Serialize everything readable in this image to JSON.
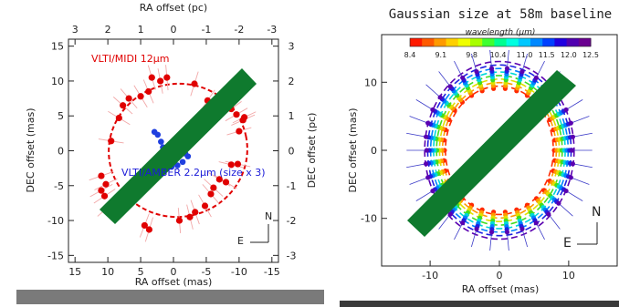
{
  "colors": {
    "red_points": "#e00000",
    "blue_points": "#1f3fdf",
    "green_bar": "#0f7a2e",
    "gray_strip": "#7a7a7a",
    "dark_strip": "#3a3a3a"
  },
  "chart_data": [
    {
      "type": "scatter",
      "xlabel": "RA offset (mas)",
      "ylabel": "DEC offset (mas)",
      "top_xlabel": "RA offset (pc)",
      "right_ylabel": "DEC offset (pc)",
      "xlim": [
        16,
        -16
      ],
      "ylim": [
        -16,
        16
      ],
      "x_ticks": [
        "15",
        "10",
        "5",
        "0",
        "-5",
        "-10",
        "-15"
      ],
      "y_ticks": [
        "-15",
        "-10",
        "-5",
        "0",
        "5",
        "10",
        "15"
      ],
      "top_ticks": [
        "3",
        "2",
        "1",
        "0",
        "-1",
        "-2",
        "-3"
      ],
      "right_ticks": [
        "-3",
        "-2",
        "-1",
        "0",
        "1",
        "2",
        "3"
      ],
      "annotations": {
        "midi": "VLTI/MIDI 12μm",
        "amber": "VLTI/AMBER 2.2μm (size x 3)",
        "north": "N",
        "east": "E"
      },
      "series": [
        {
          "name": "VLTI/MIDI 12μm",
          "x": [
            11,
            10.3,
            9.5,
            8.3,
            7.7,
            6.8,
            5.0,
            3.8,
            3.3,
            2.0,
            1.0,
            -3.2,
            -5.2,
            -8.8,
            -9.6,
            -10.6,
            11.0,
            10.5,
            10.1,
            4.4,
            3.7,
            -0.9,
            -2.5,
            -3.3,
            -4.8,
            -5.7,
            -6.1,
            -7.0,
            -8.0,
            -8.8,
            -9.8,
            -10.0,
            -10.8
          ],
          "y": [
            -3.6,
            -4.8,
            1.4,
            4.7,
            6.5,
            7.5,
            7.8,
            8.5,
            10.5,
            10.0,
            10.5,
            9.6,
            7.2,
            6.0,
            5.2,
            4.4,
            -5.7,
            -6.5,
            -8.2,
            -10.7,
            -11.3,
            -10.0,
            -9.5,
            -8.8,
            -7.9,
            -6.2,
            -5.3,
            -4.1,
            -4.5,
            -2.0,
            -1.9,
            2.8,
            4.8
          ]
        },
        {
          "name": "VLTI/AMBER 2.2μm (size x 3)",
          "x": [
            2.9,
            2.4,
            1.9,
            1.6,
            1.9,
            1.3,
            0.9,
            0.2,
            -0.4,
            -0.9,
            -1.4,
            -1.8,
            -2.2,
            -1.4,
            -0.6,
            0.3
          ],
          "y": [
            2.7,
            2.3,
            1.3,
            0.5,
            -0.4,
            -1.0,
            -1.6,
            -1.6,
            -1.2,
            -0.5,
            0.0,
            -0.4,
            -0.8,
            -1.6,
            -2.1,
            -2.3
          ]
        }
      ]
    },
    {
      "type": "scatter",
      "title": "Gaussian size at 58m baseline",
      "xlabel": "RA offset (mas)",
      "ylabel": "DEC offset (mas)",
      "xlim": [
        -17,
        17
      ],
      "ylim": [
        -17,
        17
      ],
      "x_ticks": [
        "-10",
        "0",
        "10"
      ],
      "y_ticks": [
        "-10",
        "0",
        "10"
      ],
      "colorbar": {
        "label": "wavelength (μm)",
        "ticks": [
          "8.4",
          "9.1",
          "9.8",
          "10.4",
          "11.0",
          "11.5",
          "12.0",
          "12.5"
        ],
        "range": [
          8.4,
          12.5
        ]
      },
      "annotations": {
        "north": "N",
        "east": "E"
      },
      "ellipse_fit": {
        "a_mas": 9.5,
        "b_mas": 11.5
      }
    }
  ]
}
